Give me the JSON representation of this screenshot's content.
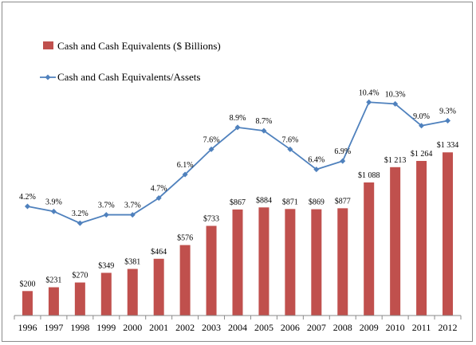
{
  "chart_data": {
    "type": "bar",
    "categories": [
      "1996",
      "1997",
      "1998",
      "1999",
      "2000",
      "2001",
      "2002",
      "2003",
      "2004",
      "2005",
      "2006",
      "2007",
      "2008",
      "2009",
      "2010",
      "2011",
      "2012"
    ],
    "series": [
      {
        "name": "Cash and Cash Equivalents ($ Billions)",
        "type": "bar",
        "axis": "left",
        "color": "#c0504d",
        "values": [
          200,
          231,
          270,
          349,
          381,
          464,
          576,
          733,
          867,
          884,
          871,
          869,
          877,
          1088,
          1213,
          1264,
          1334
        ],
        "labels": [
          "$200",
          "$231",
          "$270",
          "$349",
          "$381",
          "$464",
          "$576",
          "$733",
          "$867",
          "$884",
          "$871",
          "$869",
          "$877",
          "$1 088",
          "$1 213",
          "$1 264",
          "$1 334"
        ]
      },
      {
        "name": "Cash and Cash Equivalents/Assets",
        "type": "line",
        "axis": "right",
        "color": "#4f81bd",
        "values": [
          4.2,
          3.9,
          3.2,
          3.7,
          3.7,
          4.7,
          6.1,
          7.6,
          8.9,
          8.7,
          7.6,
          6.4,
          6.9,
          10.4,
          10.3,
          9.0,
          9.3
        ],
        "labels": [
          "4.2%",
          "3.9%",
          "3.2%",
          "3.7%",
          "3.7%",
          "4.7%",
          "6.1%",
          "7.6%",
          "8.9%",
          "8.7%",
          "7.6%",
          "6.4%",
          "6.9%",
          "10.4%",
          "10.3%",
          "9.0%",
          "9.3%"
        ]
      }
    ],
    "legend_position": "top-left",
    "grid": false,
    "ylim_left": [
      0,
      2800
    ],
    "ylim_right": [
      0,
      12
    ]
  }
}
